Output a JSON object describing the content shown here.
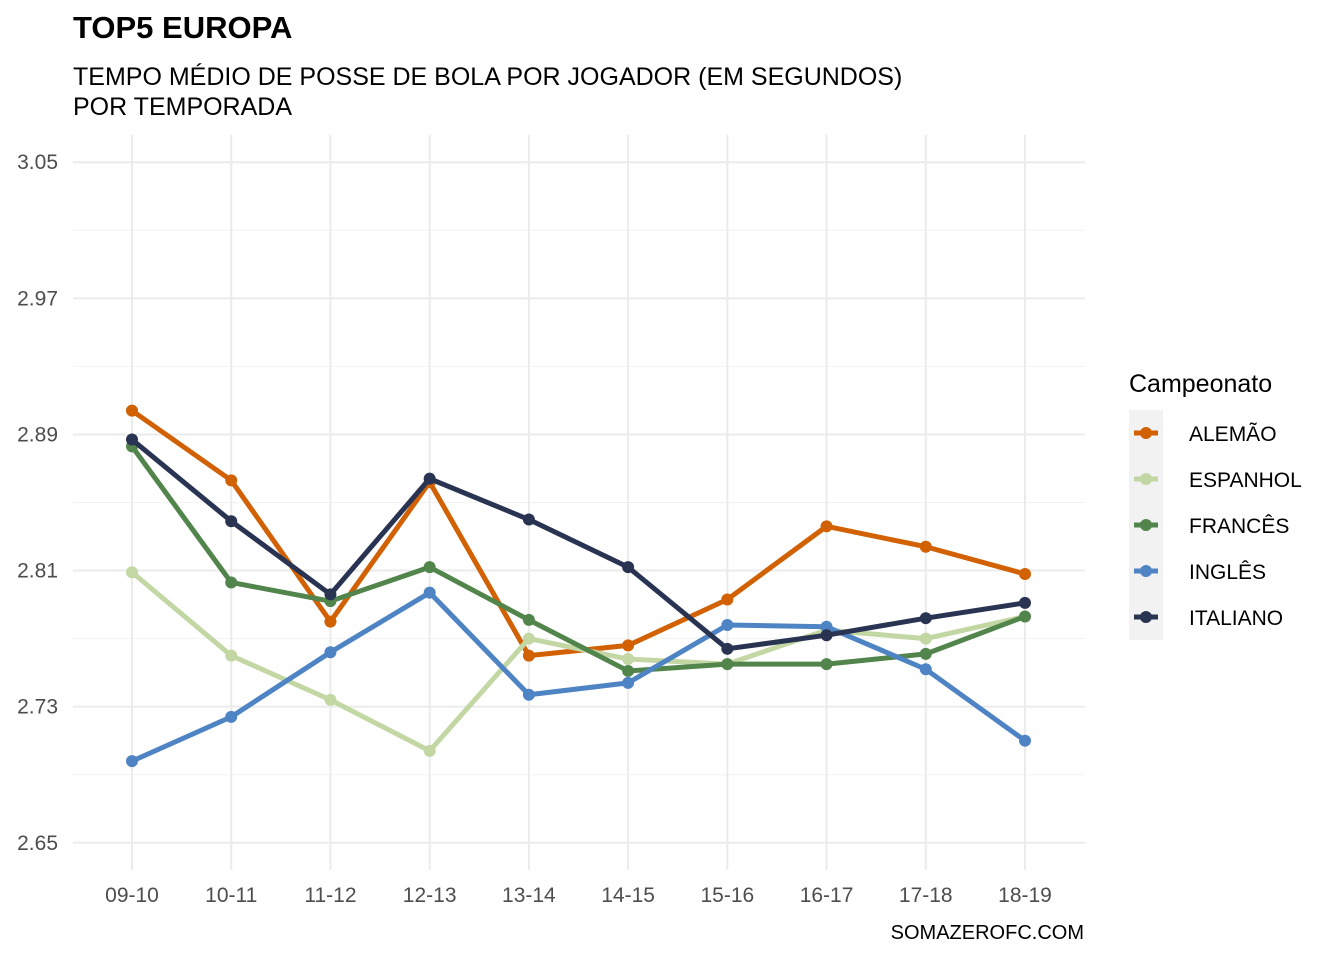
{
  "header": {
    "title": "TOP5 EUROPA",
    "subtitle_line1": "TEMPO MÉDIO DE POSSE DE BOLA POR JOGADOR (EM SEGUNDOS)",
    "subtitle_line2": "POR TEMPORADA"
  },
  "caption": "SOMAZEROFC.COM",
  "chart_data": {
    "type": "line",
    "title": "TOP5 EUROPA",
    "subtitle": "TEMPO MÉDIO DE POSSE DE BOLA POR JOGADOR (EM SEGUNDOS) POR TEMPORADA",
    "xlabel": "",
    "ylabel": "",
    "categories": [
      "09-10",
      "10-11",
      "11-12",
      "12-13",
      "13-14",
      "14-15",
      "15-16",
      "16-17",
      "17-18",
      "18-19"
    ],
    "ylim": [
      2.634,
      3.066
    ],
    "y_ticks": [
      2.65,
      2.73,
      2.81,
      2.89,
      2.97,
      3.05
    ],
    "y_tick_labels": [
      "2.65",
      "2.73",
      "2.81",
      "2.89",
      "2.97",
      "3.05"
    ],
    "grid": true,
    "legend": {
      "title": "Campeonato",
      "position": "right"
    },
    "series": [
      {
        "name": "ALEMÃO",
        "color": "#d16103",
        "values": [
          2.904,
          2.863,
          2.78,
          2.862,
          2.76,
          2.766,
          2.793,
          2.836,
          2.824,
          2.808
        ]
      },
      {
        "name": "ESPANHOL",
        "color": "#c3d7a4",
        "values": [
          2.809,
          2.76,
          2.734,
          2.704,
          2.77,
          2.758,
          2.755,
          2.775,
          2.77,
          2.783
        ]
      },
      {
        "name": "FRANCÊS",
        "color": "#52854c",
        "values": [
          2.883,
          2.803,
          2.792,
          2.812,
          2.781,
          2.751,
          2.755,
          2.755,
          2.761,
          2.783
        ]
      },
      {
        "name": "INGLÊS",
        "color": "#4e84c4",
        "values": [
          2.698,
          2.724,
          2.762,
          2.797,
          2.737,
          2.744,
          2.778,
          2.777,
          2.752,
          2.71
        ]
      },
      {
        "name": "ITALIANO",
        "color": "#293352",
        "values": [
          2.887,
          2.839,
          2.796,
          2.864,
          2.84,
          2.812,
          2.764,
          2.772,
          2.782,
          2.791
        ]
      }
    ]
  }
}
